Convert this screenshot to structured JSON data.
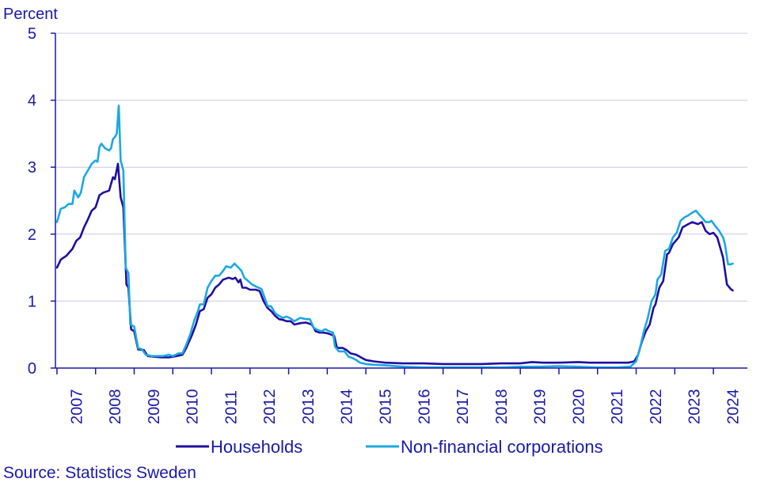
{
  "chart_data": {
    "type": "line",
    "title": "",
    "ylabel": "Percent",
    "xlabel": "",
    "ylim": [
      0,
      5
    ],
    "yticks": [
      0,
      1,
      2,
      3,
      4,
      5
    ],
    "x_start": 2006.96,
    "x_end": 2024.88,
    "years": [
      "2007",
      "2008",
      "2009",
      "2010",
      "2011",
      "2012",
      "2013",
      "2014",
      "2015",
      "2016",
      "2017",
      "2018",
      "2019",
      "2020",
      "2021",
      "2022",
      "2023",
      "2024"
    ],
    "grid": true,
    "legend_position": "bottom",
    "series": [
      {
        "name": "Households",
        "color": "#1f0fa0",
        "points": [
          [
            2007.0,
            1.5
          ],
          [
            2007.1,
            1.62
          ],
          [
            2007.25,
            1.68
          ],
          [
            2007.4,
            1.78
          ],
          [
            2007.5,
            1.9
          ],
          [
            2007.6,
            1.95
          ],
          [
            2007.7,
            2.1
          ],
          [
            2007.8,
            2.22
          ],
          [
            2007.9,
            2.35
          ],
          [
            2008.0,
            2.4
          ],
          [
            2008.1,
            2.58
          ],
          [
            2008.2,
            2.62
          ],
          [
            2008.35,
            2.65
          ],
          [
            2008.45,
            2.85
          ],
          [
            2008.5,
            2.82
          ],
          [
            2008.58,
            3.05
          ],
          [
            2008.65,
            2.55
          ],
          [
            2008.72,
            2.4
          ],
          [
            2008.8,
            1.25
          ],
          [
            2008.85,
            1.2
          ],
          [
            2008.92,
            0.58
          ],
          [
            2009.0,
            0.55
          ],
          [
            2009.1,
            0.28
          ],
          [
            2009.25,
            0.27
          ],
          [
            2009.35,
            0.18
          ],
          [
            2009.5,
            0.17
          ],
          [
            2009.7,
            0.16
          ],
          [
            2009.9,
            0.16
          ],
          [
            2010.1,
            0.18
          ],
          [
            2010.25,
            0.2
          ],
          [
            2010.35,
            0.3
          ],
          [
            2010.5,
            0.5
          ],
          [
            2010.6,
            0.65
          ],
          [
            2010.7,
            0.85
          ],
          [
            2010.8,
            0.88
          ],
          [
            2010.9,
            1.05
          ],
          [
            2011.0,
            1.1
          ],
          [
            2011.1,
            1.2
          ],
          [
            2011.2,
            1.25
          ],
          [
            2011.3,
            1.32
          ],
          [
            2011.45,
            1.35
          ],
          [
            2011.55,
            1.33
          ],
          [
            2011.62,
            1.35
          ],
          [
            2011.7,
            1.28
          ],
          [
            2011.75,
            1.32
          ],
          [
            2011.8,
            1.2
          ],
          [
            2011.9,
            1.2
          ],
          [
            2012.0,
            1.17
          ],
          [
            2012.15,
            1.17
          ],
          [
            2012.25,
            1.15
          ],
          [
            2012.35,
            1.0
          ],
          [
            2012.45,
            0.9
          ],
          [
            2012.55,
            0.85
          ],
          [
            2012.65,
            0.78
          ],
          [
            2012.75,
            0.73
          ],
          [
            2012.85,
            0.72
          ],
          [
            2012.95,
            0.7
          ],
          [
            2013.05,
            0.7
          ],
          [
            2013.15,
            0.65
          ],
          [
            2013.3,
            0.67
          ],
          [
            2013.45,
            0.68
          ],
          [
            2013.6,
            0.65
          ],
          [
            2013.7,
            0.55
          ],
          [
            2013.8,
            0.53
          ],
          [
            2013.9,
            0.53
          ],
          [
            2014.0,
            0.52
          ],
          [
            2014.1,
            0.5
          ],
          [
            2014.18,
            0.48
          ],
          [
            2014.25,
            0.3
          ],
          [
            2014.4,
            0.3
          ],
          [
            2014.5,
            0.27
          ],
          [
            2014.6,
            0.22
          ],
          [
            2014.75,
            0.2
          ],
          [
            2014.9,
            0.15
          ],
          [
            2015.0,
            0.12
          ],
          [
            2015.2,
            0.1
          ],
          [
            2015.5,
            0.08
          ],
          [
            2016.0,
            0.07
          ],
          [
            2016.5,
            0.07
          ],
          [
            2017.0,
            0.06
          ],
          [
            2017.5,
            0.06
          ],
          [
            2018.0,
            0.06
          ],
          [
            2018.5,
            0.07
          ],
          [
            2019.0,
            0.07
          ],
          [
            2019.3,
            0.09
          ],
          [
            2019.6,
            0.08
          ],
          [
            2020.0,
            0.08
          ],
          [
            2020.5,
            0.09
          ],
          [
            2020.8,
            0.08
          ],
          [
            2021.0,
            0.08
          ],
          [
            2021.5,
            0.08
          ],
          [
            2021.8,
            0.08
          ],
          [
            2021.95,
            0.1
          ],
          [
            2022.05,
            0.2
          ],
          [
            2022.15,
            0.4
          ],
          [
            2022.25,
            0.55
          ],
          [
            2022.35,
            0.65
          ],
          [
            2022.45,
            0.9
          ],
          [
            2022.5,
            0.95
          ],
          [
            2022.6,
            1.2
          ],
          [
            2022.7,
            1.3
          ],
          [
            2022.8,
            1.7
          ],
          [
            2022.85,
            1.72
          ],
          [
            2022.95,
            1.85
          ],
          [
            2023.1,
            1.95
          ],
          [
            2023.2,
            2.1
          ],
          [
            2023.35,
            2.15
          ],
          [
            2023.45,
            2.18
          ],
          [
            2023.6,
            2.15
          ],
          [
            2023.7,
            2.18
          ],
          [
            2023.8,
            2.05
          ],
          [
            2023.9,
            2.0
          ],
          [
            2024.0,
            2.02
          ],
          [
            2024.1,
            1.95
          ],
          [
            2024.25,
            1.65
          ],
          [
            2024.35,
            1.25
          ],
          [
            2024.45,
            1.18
          ],
          [
            2024.5,
            1.16
          ]
        ]
      },
      {
        "name": "Non-financial corporations",
        "color": "#1ca8e0",
        "points": [
          [
            2007.0,
            2.18
          ],
          [
            2007.1,
            2.38
          ],
          [
            2007.2,
            2.4
          ],
          [
            2007.3,
            2.45
          ],
          [
            2007.4,
            2.45
          ],
          [
            2007.45,
            2.65
          ],
          [
            2007.55,
            2.55
          ],
          [
            2007.62,
            2.62
          ],
          [
            2007.7,
            2.85
          ],
          [
            2007.8,
            2.95
          ],
          [
            2007.9,
            3.05
          ],
          [
            2008.0,
            3.1
          ],
          [
            2008.05,
            3.08
          ],
          [
            2008.1,
            3.3
          ],
          [
            2008.15,
            3.35
          ],
          [
            2008.25,
            3.28
          ],
          [
            2008.35,
            3.25
          ],
          [
            2008.4,
            3.28
          ],
          [
            2008.45,
            3.42
          ],
          [
            2008.5,
            3.45
          ],
          [
            2008.55,
            3.5
          ],
          [
            2008.6,
            3.92
          ],
          [
            2008.65,
            3.1
          ],
          [
            2008.72,
            2.95
          ],
          [
            2008.78,
            1.5
          ],
          [
            2008.85,
            1.42
          ],
          [
            2008.9,
            0.65
          ],
          [
            2009.0,
            0.62
          ],
          [
            2009.1,
            0.3
          ],
          [
            2009.2,
            0.28
          ],
          [
            2009.3,
            0.2
          ],
          [
            2009.45,
            0.18
          ],
          [
            2009.6,
            0.18
          ],
          [
            2009.75,
            0.18
          ],
          [
            2009.9,
            0.2
          ],
          [
            2010.0,
            0.18
          ],
          [
            2010.15,
            0.22
          ],
          [
            2010.25,
            0.22
          ],
          [
            2010.35,
            0.35
          ],
          [
            2010.45,
            0.5
          ],
          [
            2010.55,
            0.7
          ],
          [
            2010.65,
            0.85
          ],
          [
            2010.7,
            0.95
          ],
          [
            2010.8,
            0.95
          ],
          [
            2010.9,
            1.2
          ],
          [
            2011.0,
            1.3
          ],
          [
            2011.1,
            1.38
          ],
          [
            2011.2,
            1.38
          ],
          [
            2011.3,
            1.45
          ],
          [
            2011.38,
            1.52
          ],
          [
            2011.5,
            1.5
          ],
          [
            2011.6,
            1.56
          ],
          [
            2011.7,
            1.5
          ],
          [
            2011.78,
            1.45
          ],
          [
            2011.85,
            1.35
          ],
          [
            2011.95,
            1.3
          ],
          [
            2012.05,
            1.25
          ],
          [
            2012.15,
            1.22
          ],
          [
            2012.3,
            1.18
          ],
          [
            2012.38,
            1.05
          ],
          [
            2012.45,
            0.93
          ],
          [
            2012.55,
            0.92
          ],
          [
            2012.65,
            0.82
          ],
          [
            2012.75,
            0.78
          ],
          [
            2012.85,
            0.75
          ],
          [
            2012.95,
            0.77
          ],
          [
            2013.05,
            0.74
          ],
          [
            2013.15,
            0.7
          ],
          [
            2013.3,
            0.75
          ],
          [
            2013.45,
            0.73
          ],
          [
            2013.55,
            0.73
          ],
          [
            2013.65,
            0.6
          ],
          [
            2013.75,
            0.57
          ],
          [
            2013.85,
            0.55
          ],
          [
            2013.95,
            0.58
          ],
          [
            2014.05,
            0.55
          ],
          [
            2014.15,
            0.53
          ],
          [
            2014.2,
            0.32
          ],
          [
            2014.3,
            0.25
          ],
          [
            2014.45,
            0.25
          ],
          [
            2014.55,
            0.17
          ],
          [
            2014.65,
            0.15
          ],
          [
            2014.75,
            0.12
          ],
          [
            2014.85,
            0.08
          ],
          [
            2015.0,
            0.06
          ],
          [
            2015.2,
            0.05
          ],
          [
            2015.5,
            0.04
          ],
          [
            2016.0,
            0.02
          ],
          [
            2016.5,
            0.01
          ],
          [
            2017.0,
            0.01
          ],
          [
            2017.5,
            0.01
          ],
          [
            2018.0,
            0.01
          ],
          [
            2018.5,
            0.01
          ],
          [
            2019.0,
            0.02
          ],
          [
            2019.5,
            0.02
          ],
          [
            2020.0,
            0.03
          ],
          [
            2020.5,
            0.02
          ],
          [
            2021.0,
            0.01
          ],
          [
            2021.5,
            0.01
          ],
          [
            2021.85,
            0.02
          ],
          [
            2022.0,
            0.1
          ],
          [
            2022.1,
            0.3
          ],
          [
            2022.2,
            0.55
          ],
          [
            2022.3,
            0.75
          ],
          [
            2022.4,
            1.0
          ],
          [
            2022.5,
            1.1
          ],
          [
            2022.55,
            1.32
          ],
          [
            2022.65,
            1.4
          ],
          [
            2022.75,
            1.75
          ],
          [
            2022.85,
            1.78
          ],
          [
            2022.95,
            1.95
          ],
          [
            2023.05,
            2.02
          ],
          [
            2023.15,
            2.2
          ],
          [
            2023.25,
            2.25
          ],
          [
            2023.35,
            2.28
          ],
          [
            2023.45,
            2.32
          ],
          [
            2023.55,
            2.35
          ],
          [
            2023.62,
            2.3
          ],
          [
            2023.7,
            2.25
          ],
          [
            2023.8,
            2.18
          ],
          [
            2023.9,
            2.18
          ],
          [
            2023.95,
            2.2
          ],
          [
            2024.05,
            2.12
          ],
          [
            2024.15,
            2.05
          ],
          [
            2024.25,
            1.95
          ],
          [
            2024.3,
            1.85
          ],
          [
            2024.38,
            1.55
          ],
          [
            2024.45,
            1.55
          ],
          [
            2024.5,
            1.56
          ]
        ]
      }
    ],
    "source": "Source: Statistics Sweden",
    "colors": {
      "text": "#1a1aa6",
      "axis": "#1a1aa6",
      "grid": "#c9c9e6"
    }
  }
}
